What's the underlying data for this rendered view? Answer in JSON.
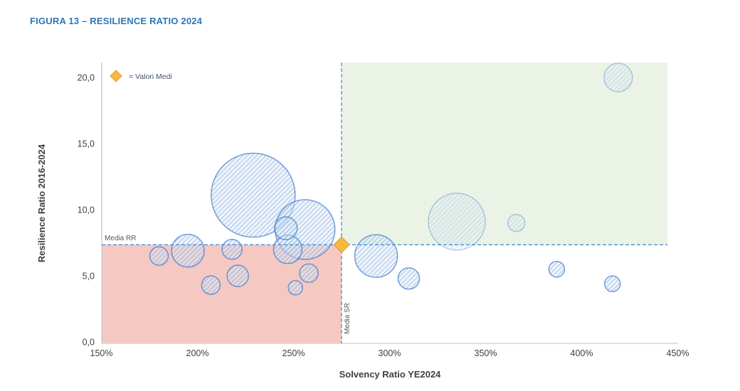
{
  "title": "FIGURA 13 – RESILIENCE RATIO 2024",
  "legend": {
    "marker": "diamond-icon",
    "label": "= Valori Medi"
  },
  "colors": {
    "title_blue": "#2E75B6",
    "dashed_line": "#4A8FD3",
    "bubble_stroke": "#4E85CD",
    "bubble_fill": "#DCE8F7",
    "bubble_hatch": "#79A7DF",
    "red_region": "#F5C8C2",
    "green_region": "#EBF3E6",
    "diamond_fill": "#F5B840",
    "diamond_stroke": "#D99A2B",
    "axis_text": "#404040",
    "media_text": "#595959",
    "axis_line": "#C9C9C9"
  },
  "chart_data": {
    "type": "scatter",
    "subtype": "bubble",
    "title": "FIGURA 13 – RESILIENCE RATIO 2024",
    "xlabel": "Solvency Ratio YE2024",
    "ylabel": "Resilience Ratio 2016-2024",
    "xlim": [
      150,
      450
    ],
    "ylim": [
      0,
      21.2
    ],
    "x_ticks": [
      {
        "value": 150,
        "label": "150%"
      },
      {
        "value": 200,
        "label": "200%"
      },
      {
        "value": 250,
        "label": "250%"
      },
      {
        "value": 300,
        "label": "300%"
      },
      {
        "value": 350,
        "label": "350%"
      },
      {
        "value": 400,
        "label": "400%"
      },
      {
        "value": 450,
        "label": "450%"
      }
    ],
    "y_ticks": [
      {
        "value": 0,
        "label": "0,0"
      },
      {
        "value": 5,
        "label": "5,0"
      },
      {
        "value": 10,
        "label": "10,0"
      },
      {
        "value": 15,
        "label": "15,0"
      },
      {
        "value": 20,
        "label": "20,0"
      }
    ],
    "grid": false,
    "legend_position": "top-left-inside",
    "mean_point": {
      "x": 275,
      "y": 7.35,
      "label": "= Valori Medi"
    },
    "media_rr": {
      "value": 7.35,
      "label": "Media RR"
    },
    "media_sr": {
      "value": 275,
      "label": "Media SR"
    },
    "quadrants": {
      "low_low": {
        "color": "#F5C8C2",
        "x_range": [
          150,
          275
        ],
        "y_range": [
          0,
          7.35
        ]
      },
      "high_high": {
        "color": "#EBF3E6",
        "x_range": [
          275,
          444
        ],
        "y_range": [
          7.35,
          21.2
        ]
      }
    },
    "points": [
      {
        "x": 180,
        "y": 6.5,
        "r": 13,
        "style": "standard"
      },
      {
        "x": 195,
        "y": 6.9,
        "r": 23,
        "style": "standard"
      },
      {
        "x": 207,
        "y": 4.3,
        "r": 13,
        "style": "standard"
      },
      {
        "x": 218,
        "y": 7.0,
        "r": 14,
        "style": "standard"
      },
      {
        "x": 221,
        "y": 5.0,
        "r": 15,
        "style": "standard"
      },
      {
        "x": 229,
        "y": 11.1,
        "r": 59,
        "style": "standard"
      },
      {
        "x": 246,
        "y": 8.6,
        "r": 16,
        "style": "standard"
      },
      {
        "x": 247,
        "y": 7.0,
        "r": 20,
        "style": "standard"
      },
      {
        "x": 251,
        "y": 4.1,
        "r": 10,
        "style": "standard"
      },
      {
        "x": 256,
        "y": 8.5,
        "r": 42,
        "style": "standard"
      },
      {
        "x": 258,
        "y": 5.2,
        "r": 13,
        "style": "standard"
      },
      {
        "x": 293,
        "y": 6.5,
        "r": 30,
        "style": "standard"
      },
      {
        "x": 310,
        "y": 4.8,
        "r": 15,
        "style": "standard"
      },
      {
        "x": 335,
        "y": 9.1,
        "r": 40,
        "style": "light"
      },
      {
        "x": 366,
        "y": 9.0,
        "r": 12,
        "style": "light"
      },
      {
        "x": 387,
        "y": 5.5,
        "r": 11,
        "style": "standard"
      },
      {
        "x": 416,
        "y": 4.4,
        "r": 11,
        "style": "standard"
      },
      {
        "x": 419,
        "y": 20.0,
        "r": 20,
        "style": "light"
      }
    ]
  }
}
